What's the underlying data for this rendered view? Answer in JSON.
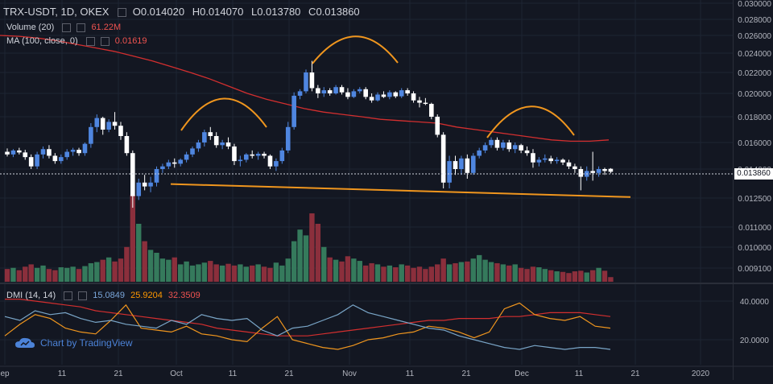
{
  "header": {
    "symbol": "TRX-USDT, 1D, OKEX",
    "open_label": "O",
    "open": "0.014020",
    "high_label": "H",
    "high": "0.014070",
    "low_label": "L",
    "low": "0.013780",
    "close_label": "C",
    "close": "0.013860"
  },
  "volume_legend": {
    "label": "Volume (20)",
    "value": "61.22M"
  },
  "ma_legend": {
    "label": "MA (100, close, 0)",
    "value": "0.01619"
  },
  "dmi_legend": {
    "label": "DMI (14, 14)",
    "v1": "15.0849",
    "v2": "25.9204",
    "v3": "32.3509"
  },
  "last_price": "0.013860",
  "branding": "Chart by TradingView",
  "colors": {
    "up": "#4f86e0",
    "down": "#ffffff",
    "ma": "#d32f2f",
    "pattern": "#f0961e",
    "vol_up": "#357a5c",
    "vol_down": "#8b2f3c"
  },
  "chart_data": {
    "type": "candlestick",
    "price_axis": {
      "ticks": [
        "0.030000",
        "0.028000",
        "0.026000",
        "0.024000",
        "0.022000",
        "0.020000",
        "0.018000",
        "0.016000",
        "0.014000",
        "0.012500",
        "0.011000",
        "0.010000",
        "0.009100"
      ],
      "ylim": [
        0.0089,
        0.0301
      ]
    },
    "dmi_axis": {
      "ticks": [
        "40.0000",
        "20.0000"
      ]
    },
    "x_axis": {
      "labels": [
        "ep",
        "11",
        "21",
        "Oct",
        "11",
        "21",
        "Nov",
        "11",
        "21",
        "Dec",
        "11",
        "21",
        "2020"
      ]
    },
    "candles": [
      {
        "o": 0.0153,
        "h": 0.01555,
        "l": 0.01495,
        "c": 0.0151
      },
      {
        "o": 0.0151,
        "h": 0.0155,
        "l": 0.0149,
        "c": 0.0154
      },
      {
        "o": 0.0154,
        "h": 0.0156,
        "l": 0.0151,
        "c": 0.01525
      },
      {
        "o": 0.01525,
        "h": 0.01545,
        "l": 0.0147,
        "c": 0.0149
      },
      {
        "o": 0.0149,
        "h": 0.0151,
        "l": 0.014,
        "c": 0.0142
      },
      {
        "o": 0.0142,
        "h": 0.0153,
        "l": 0.014,
        "c": 0.0151
      },
      {
        "o": 0.0151,
        "h": 0.0157,
        "l": 0.0148,
        "c": 0.0155
      },
      {
        "o": 0.0155,
        "h": 0.0158,
        "l": 0.0148,
        "c": 0.015
      },
      {
        "o": 0.015,
        "h": 0.0152,
        "l": 0.0144,
        "c": 0.0146
      },
      {
        "o": 0.0146,
        "h": 0.0151,
        "l": 0.0144,
        "c": 0.0149
      },
      {
        "o": 0.0149,
        "h": 0.0155,
        "l": 0.0147,
        "c": 0.0153
      },
      {
        "o": 0.0153,
        "h": 0.0156,
        "l": 0.015,
        "c": 0.01545
      },
      {
        "o": 0.01545,
        "h": 0.0156,
        "l": 0.015,
        "c": 0.0152
      },
      {
        "o": 0.0152,
        "h": 0.016,
        "l": 0.015,
        "c": 0.0159
      },
      {
        "o": 0.0159,
        "h": 0.0175,
        "l": 0.0156,
        "c": 0.0172
      },
      {
        "o": 0.0172,
        "h": 0.0182,
        "l": 0.0168,
        "c": 0.0179
      },
      {
        "o": 0.0179,
        "h": 0.018,
        "l": 0.0166,
        "c": 0.017
      },
      {
        "o": 0.017,
        "h": 0.0178,
        "l": 0.0168,
        "c": 0.0176
      },
      {
        "o": 0.0176,
        "h": 0.0184,
        "l": 0.017,
        "c": 0.0173
      },
      {
        "o": 0.0173,
        "h": 0.0176,
        "l": 0.0162,
        "c": 0.0165
      },
      {
        "o": 0.0165,
        "h": 0.0168,
        "l": 0.015,
        "c": 0.0152
      },
      {
        "o": 0.0152,
        "h": 0.0154,
        "l": 0.012,
        "c": 0.0126
      },
      {
        "o": 0.0126,
        "h": 0.0135,
        "l": 0.0124,
        "c": 0.0133
      },
      {
        "o": 0.0133,
        "h": 0.0137,
        "l": 0.0129,
        "c": 0.0131
      },
      {
        "o": 0.0131,
        "h": 0.0136,
        "l": 0.0128,
        "c": 0.0133
      },
      {
        "o": 0.0133,
        "h": 0.0142,
        "l": 0.0131,
        "c": 0.014
      },
      {
        "o": 0.014,
        "h": 0.0144,
        "l": 0.0138,
        "c": 0.0142
      },
      {
        "o": 0.0142,
        "h": 0.0147,
        "l": 0.014,
        "c": 0.0145
      },
      {
        "o": 0.0145,
        "h": 0.0148,
        "l": 0.0141,
        "c": 0.0144
      },
      {
        "o": 0.0144,
        "h": 0.0148,
        "l": 0.0142,
        "c": 0.0147
      },
      {
        "o": 0.0147,
        "h": 0.0153,
        "l": 0.0145,
        "c": 0.0151
      },
      {
        "o": 0.0151,
        "h": 0.0157,
        "l": 0.0149,
        "c": 0.01555
      },
      {
        "o": 0.01555,
        "h": 0.0162,
        "l": 0.0153,
        "c": 0.016
      },
      {
        "o": 0.016,
        "h": 0.017,
        "l": 0.0157,
        "c": 0.0168
      },
      {
        "o": 0.0168,
        "h": 0.0172,
        "l": 0.0162,
        "c": 0.0165
      },
      {
        "o": 0.0165,
        "h": 0.0168,
        "l": 0.0156,
        "c": 0.0158
      },
      {
        "o": 0.0158,
        "h": 0.0162,
        "l": 0.0155,
        "c": 0.016
      },
      {
        "o": 0.016,
        "h": 0.0164,
        "l": 0.0155,
        "c": 0.0157
      },
      {
        "o": 0.0157,
        "h": 0.0159,
        "l": 0.0143,
        "c": 0.0146
      },
      {
        "o": 0.0146,
        "h": 0.015,
        "l": 0.0142,
        "c": 0.0147
      },
      {
        "o": 0.0147,
        "h": 0.0152,
        "l": 0.0145,
        "c": 0.0151
      },
      {
        "o": 0.0151,
        "h": 0.0154,
        "l": 0.0148,
        "c": 0.015
      },
      {
        "o": 0.015,
        "h": 0.0153,
        "l": 0.0147,
        "c": 0.01515
      },
      {
        "o": 0.01515,
        "h": 0.0153,
        "l": 0.0148,
        "c": 0.015
      },
      {
        "o": 0.015,
        "h": 0.0151,
        "l": 0.014,
        "c": 0.0142
      },
      {
        "o": 0.0142,
        "h": 0.0148,
        "l": 0.0139,
        "c": 0.0146
      },
      {
        "o": 0.0146,
        "h": 0.0156,
        "l": 0.0144,
        "c": 0.0154
      },
      {
        "o": 0.0154,
        "h": 0.0176,
        "l": 0.0152,
        "c": 0.0172
      },
      {
        "o": 0.0172,
        "h": 0.0201,
        "l": 0.017,
        "c": 0.0198
      },
      {
        "o": 0.0198,
        "h": 0.0204,
        "l": 0.0195,
        "c": 0.0202
      },
      {
        "o": 0.0202,
        "h": 0.0223,
        "l": 0.02,
        "c": 0.022
      },
      {
        "o": 0.022,
        "h": 0.0232,
        "l": 0.0202,
        "c": 0.0205
      },
      {
        "o": 0.0205,
        "h": 0.0208,
        "l": 0.0196,
        "c": 0.02
      },
      {
        "o": 0.02,
        "h": 0.0206,
        "l": 0.0197,
        "c": 0.0203
      },
      {
        "o": 0.0203,
        "h": 0.0205,
        "l": 0.0198,
        "c": 0.02
      },
      {
        "o": 0.02,
        "h": 0.0208,
        "l": 0.0199,
        "c": 0.0206
      },
      {
        "o": 0.0206,
        "h": 0.0208,
        "l": 0.0199,
        "c": 0.0201
      },
      {
        "o": 0.0201,
        "h": 0.0205,
        "l": 0.0195,
        "c": 0.0197
      },
      {
        "o": 0.0197,
        "h": 0.0204,
        "l": 0.0196,
        "c": 0.0202
      },
      {
        "o": 0.0202,
        "h": 0.0206,
        "l": 0.02,
        "c": 0.0204
      },
      {
        "o": 0.0204,
        "h": 0.0206,
        "l": 0.0195,
        "c": 0.0197
      },
      {
        "o": 0.0197,
        "h": 0.02,
        "l": 0.0192,
        "c": 0.0194
      },
      {
        "o": 0.0194,
        "h": 0.0201,
        "l": 0.0193,
        "c": 0.0199
      },
      {
        "o": 0.0199,
        "h": 0.0202,
        "l": 0.0196,
        "c": 0.0197
      },
      {
        "o": 0.0197,
        "h": 0.0203,
        "l": 0.0195,
        "c": 0.0201
      },
      {
        "o": 0.0201,
        "h": 0.0202,
        "l": 0.0196,
        "c": 0.01975
      },
      {
        "o": 0.01975,
        "h": 0.0205,
        "l": 0.0196,
        "c": 0.0203
      },
      {
        "o": 0.0203,
        "h": 0.0205,
        "l": 0.0198,
        "c": 0.02
      },
      {
        "o": 0.02,
        "h": 0.0202,
        "l": 0.0192,
        "c": 0.0194
      },
      {
        "o": 0.0194,
        "h": 0.0197,
        "l": 0.0188,
        "c": 0.0192
      },
      {
        "o": 0.0192,
        "h": 0.0196,
        "l": 0.019,
        "c": 0.0191
      },
      {
        "o": 0.0191,
        "h": 0.0192,
        "l": 0.0178,
        "c": 0.018
      },
      {
        "o": 0.018,
        "h": 0.0182,
        "l": 0.0164,
        "c": 0.0166
      },
      {
        "o": 0.0166,
        "h": 0.0168,
        "l": 0.013,
        "c": 0.0133
      },
      {
        "o": 0.0133,
        "h": 0.015,
        "l": 0.013,
        "c": 0.0146
      },
      {
        "o": 0.0146,
        "h": 0.015,
        "l": 0.0137,
        "c": 0.014
      },
      {
        "o": 0.014,
        "h": 0.015,
        "l": 0.0137,
        "c": 0.0148
      },
      {
        "o": 0.0148,
        "h": 0.0151,
        "l": 0.0135,
        "c": 0.0138
      },
      {
        "o": 0.0138,
        "h": 0.0152,
        "l": 0.0137,
        "c": 0.015
      },
      {
        "o": 0.015,
        "h": 0.0156,
        "l": 0.0148,
        "c": 0.0154
      },
      {
        "o": 0.0154,
        "h": 0.016,
        "l": 0.0152,
        "c": 0.0158
      },
      {
        "o": 0.0158,
        "h": 0.0164,
        "l": 0.0156,
        "c": 0.0162
      },
      {
        "o": 0.0162,
        "h": 0.0164,
        "l": 0.0154,
        "c": 0.0156
      },
      {
        "o": 0.0156,
        "h": 0.0162,
        "l": 0.0154,
        "c": 0.016
      },
      {
        "o": 0.016,
        "h": 0.0162,
        "l": 0.0153,
        "c": 0.0155
      },
      {
        "o": 0.0155,
        "h": 0.016,
        "l": 0.0152,
        "c": 0.0158
      },
      {
        "o": 0.0158,
        "h": 0.0159,
        "l": 0.0152,
        "c": 0.0154
      },
      {
        "o": 0.0154,
        "h": 0.0157,
        "l": 0.015,
        "c": 0.0152
      },
      {
        "o": 0.0152,
        "h": 0.0155,
        "l": 0.0141,
        "c": 0.0145
      },
      {
        "o": 0.0145,
        "h": 0.0149,
        "l": 0.0142,
        "c": 0.0147
      },
      {
        "o": 0.0147,
        "h": 0.0151,
        "l": 0.0145,
        "c": 0.0148
      },
      {
        "o": 0.0148,
        "h": 0.015,
        "l": 0.0144,
        "c": 0.0146
      },
      {
        "o": 0.0146,
        "h": 0.0149,
        "l": 0.0144,
        "c": 0.0147
      },
      {
        "o": 0.0147,
        "h": 0.0148,
        "l": 0.0143,
        "c": 0.0145
      },
      {
        "o": 0.0145,
        "h": 0.0147,
        "l": 0.014,
        "c": 0.0142
      },
      {
        "o": 0.0142,
        "h": 0.0144,
        "l": 0.0138,
        "c": 0.014
      },
      {
        "o": 0.014,
        "h": 0.0142,
        "l": 0.0129,
        "c": 0.0136
      },
      {
        "o": 0.0136,
        "h": 0.0142,
        "l": 0.0134,
        "c": 0.0139
      },
      {
        "o": 0.0139,
        "h": 0.0153,
        "l": 0.0134,
        "c": 0.0138
      },
      {
        "o": 0.0138,
        "h": 0.0142,
        "l": 0.0136,
        "c": 0.014
      },
      {
        "o": 0.014,
        "h": 0.0141,
        "l": 0.0137,
        "c": 0.0139
      },
      {
        "o": 0.01402,
        "h": 0.01407,
        "l": 0.01378,
        "c": 0.01386
      }
    ],
    "volume": [
      22,
      24,
      20,
      26,
      30,
      24,
      28,
      22,
      20,
      25,
      24,
      26,
      22,
      27,
      32,
      34,
      38,
      42,
      35,
      40,
      60,
      150,
      100,
      70,
      55,
      50,
      40,
      38,
      42,
      30,
      35,
      28,
      30,
      33,
      36,
      30,
      28,
      31,
      28,
      30,
      26,
      28,
      30,
      26,
      24,
      33,
      28,
      40,
      70,
      90,
      80,
      118,
      100,
      60,
      42,
      38,
      35,
      44,
      40,
      36,
      28,
      32,
      30,
      26,
      28,
      25,
      30,
      28,
      24,
      26,
      22,
      26,
      30,
      40,
      30,
      32,
      34,
      35,
      40,
      46,
      38,
      34,
      32,
      30,
      28,
      30,
      24,
      22,
      26,
      25,
      22,
      20,
      18,
      17,
      15,
      18,
      19,
      16,
      20,
      24,
      19,
      8
    ],
    "ma100": [
      0.026,
      0.0259,
      0.0257,
      0.0254,
      0.025,
      0.0246,
      0.0242,
      0.0237,
      0.0232,
      0.0226,
      0.022,
      0.0214,
      0.0207,
      0.02,
      0.0195,
      0.0191,
      0.0187,
      0.0184,
      0.0182,
      0.018,
      0.0178,
      0.0177,
      0.0176,
      0.0175,
      0.0172,
      0.017,
      0.0168,
      0.0166,
      0.0164,
      0.0162,
      0.0161,
      0.0161,
      0.0162
    ],
    "dmi": {
      "plus_di": [
        32,
        30,
        35,
        33,
        34,
        31,
        29,
        30,
        28,
        27,
        26,
        30,
        28,
        33,
        31,
        30,
        31,
        25,
        22,
        26,
        27,
        30,
        33,
        38,
        34,
        32,
        30,
        28,
        26,
        25,
        22,
        20,
        18,
        16,
        15,
        17,
        16,
        15,
        16,
        16,
        15
      ],
      "minus_di": [
        22,
        28,
        33,
        31,
        26,
        24,
        23,
        30,
        38,
        26,
        25,
        24,
        27,
        23,
        22,
        20,
        19,
        26,
        32,
        20,
        18,
        16,
        15,
        17,
        20,
        21,
        23,
        24,
        27,
        26,
        24,
        21,
        24,
        36,
        39,
        33,
        31,
        30,
        32,
        27,
        26
      ],
      "adx": [
        41,
        41,
        40,
        39,
        38,
        37,
        35,
        34,
        33,
        32,
        31,
        30,
        29,
        28,
        26,
        25,
        24,
        23,
        22,
        22,
        22,
        23,
        24,
        25,
        26,
        27,
        28,
        29,
        30,
        30,
        31,
        31,
        31,
        32,
        32,
        33,
        34,
        34,
        34,
        33,
        32
      ]
    }
  },
  "annotations": {
    "shoulders_arcs": 3,
    "neckline": [
      0.0136,
      0.0128
    ]
  }
}
